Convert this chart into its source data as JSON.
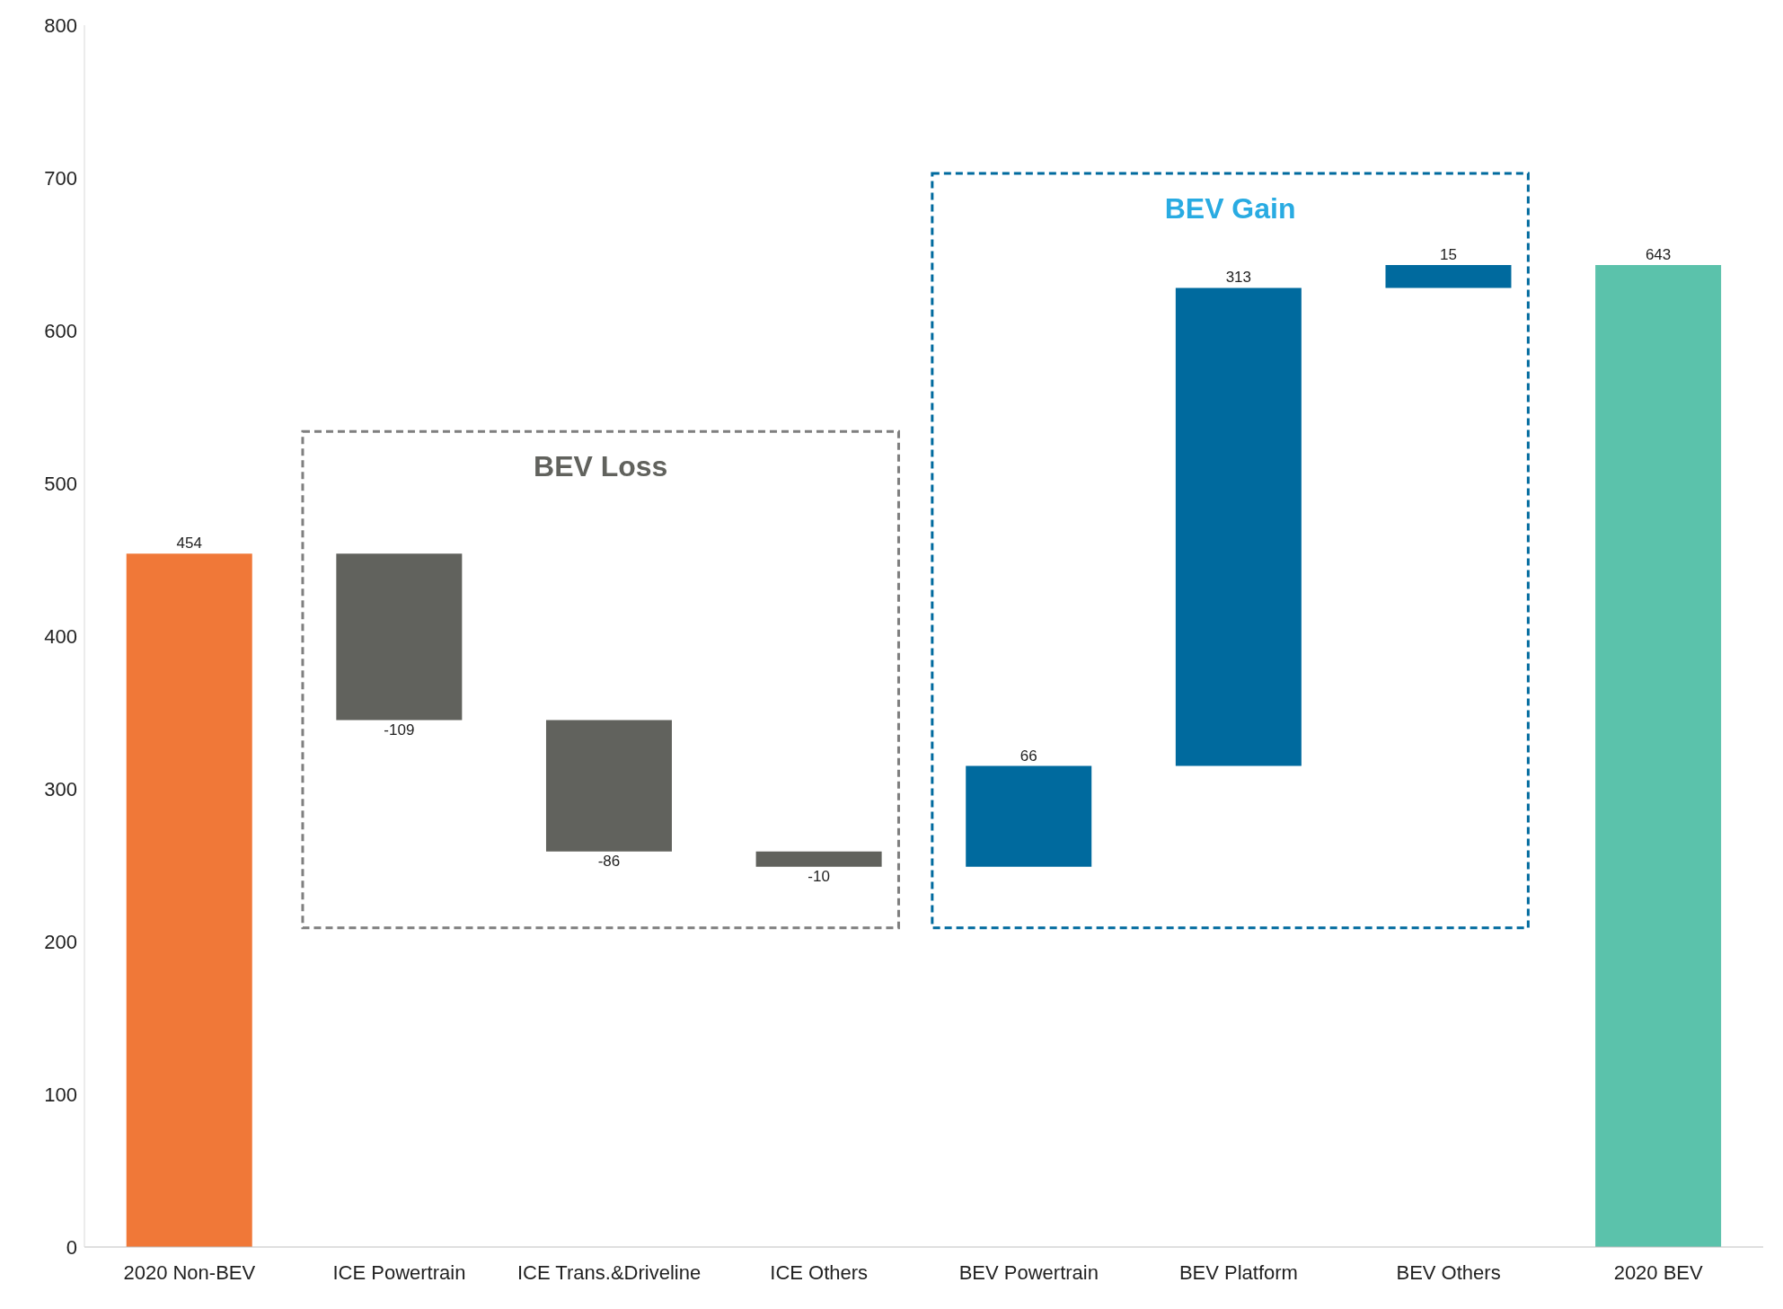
{
  "chart_data": {
    "type": "bar",
    "categories": [
      "2020 Non-BEV",
      "ICE Powertrain",
      "ICE Trans.&Driveline",
      "ICE Others",
      "BEV Powertrain",
      "BEV Platform",
      "BEV Others",
      "2020 BEV"
    ],
    "values": [
      454,
      -109,
      -86,
      -10,
      66,
      313,
      15,
      643
    ],
    "base": [
      0,
      454,
      345,
      259,
      249,
      315,
      628,
      0
    ],
    "colors": [
      "#f07838",
      "#61625d",
      "#61625d",
      "#61625d",
      "#006a9e",
      "#006a9e",
      "#006a9e",
      "#5bc2ab"
    ],
    "ylim": [
      0,
      800
    ],
    "yticks": [
      0,
      100,
      200,
      300,
      400,
      500,
      600,
      700,
      800
    ],
    "data_labels": true,
    "annotations": [
      "BEV Loss",
      "BEV Gain"
    ]
  }
}
